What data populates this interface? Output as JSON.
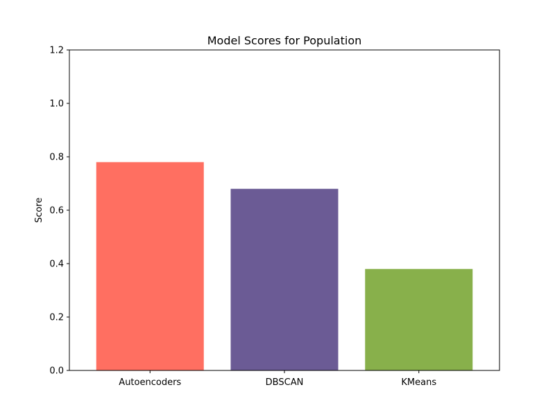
{
  "chart_data": {
    "type": "bar",
    "title": "Model Scores for Population",
    "xlabel": "",
    "ylabel": "Score",
    "categories": [
      "Autoencoders",
      "DBSCAN",
      "KMeans"
    ],
    "values": [
      0.78,
      0.68,
      0.38
    ],
    "colors": [
      "#ff6f61",
      "#6b5b95",
      "#88b04b"
    ],
    "ylim": [
      0,
      1.2
    ],
    "yticks": [
      0.0,
      0.2,
      0.4,
      0.6,
      0.8,
      1.0,
      1.2
    ],
    "ytick_labels": [
      "0.0",
      "0.2",
      "0.4",
      "0.6",
      "0.8",
      "1.0",
      "1.2"
    ],
    "grid": false,
    "legend": false
  }
}
